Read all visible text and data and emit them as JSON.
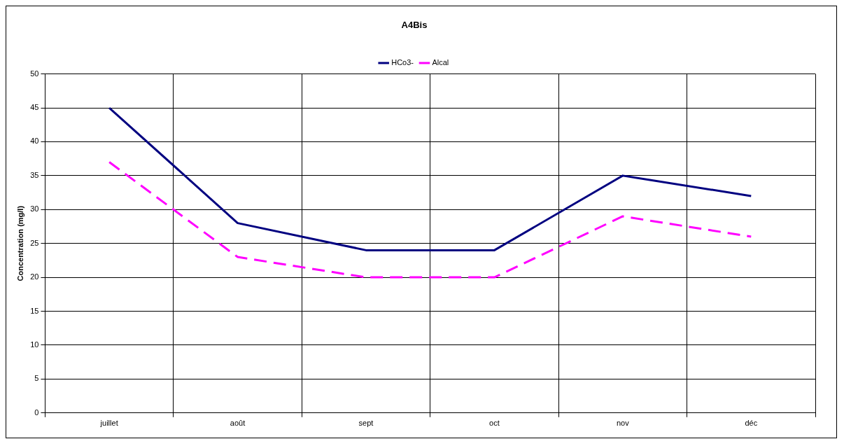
{
  "chart_data": {
    "type": "line",
    "title": "A4Bis",
    "ylabel": "Concentration (mg/l)",
    "categories": [
      "juillet",
      "août",
      "sept",
      "oct",
      "nov",
      "déc"
    ],
    "series": [
      {
        "name": "HCo3-",
        "color": "#000080",
        "values": [
          45,
          28,
          24,
          24,
          35,
          32
        ],
        "line_style": "solid"
      },
      {
        "name": "Alcal",
        "color": "#ff00ff",
        "values": [
          37,
          23,
          20,
          20,
          29,
          26
        ],
        "line_style": "dashed"
      }
    ],
    "ylim": [
      0,
      50
    ],
    "yticks": [
      0,
      5,
      10,
      15,
      20,
      25,
      30,
      35,
      40,
      45,
      50
    ],
    "grid": true,
    "legend": "top",
    "marker": "none"
  }
}
